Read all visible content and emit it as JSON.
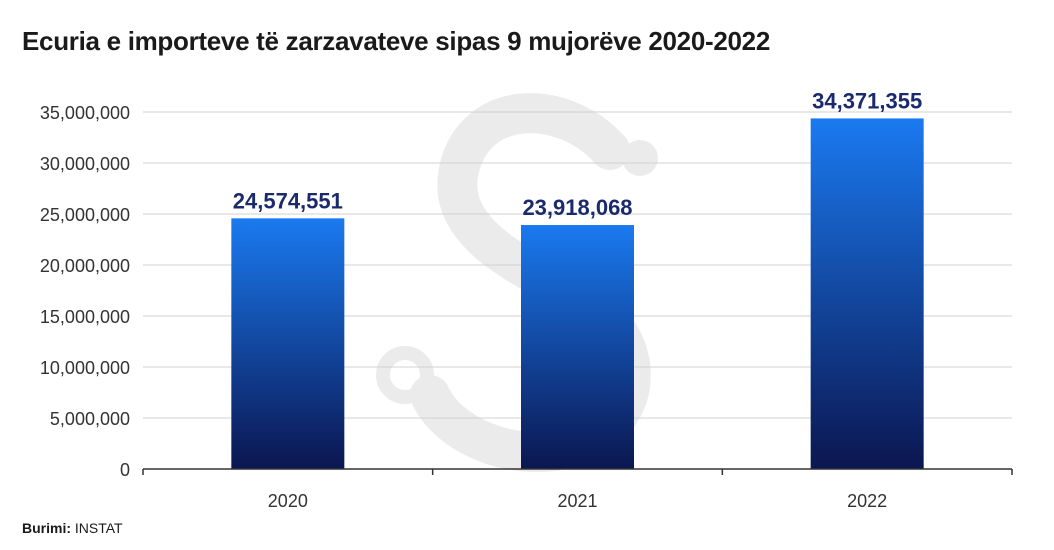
{
  "title": "Ecuria e importeve të zarzavateve sipas 9 mujorëve 2020-2022",
  "source": {
    "label": "Burimi:",
    "value": "INSTAT"
  },
  "colors": {
    "bar_top": "#1a7af0",
    "bar_bottom": "#0b1650",
    "label": "#1a2a6c",
    "grid": "#d0d0d0",
    "axis": "#333333",
    "watermark": "#ebebeb"
  },
  "chart_data": {
    "type": "bar",
    "title": "Ecuria e importeve të zarzavateve sipas 9 mujorëve 2020-2022",
    "categories": [
      "2020",
      "2021",
      "2022"
    ],
    "values": [
      24574551,
      23918068,
      34371355
    ],
    "data_labels": [
      "24,574,551",
      "23,918,068",
      "34,371,355"
    ],
    "yticks": [
      "0",
      "5,000,000",
      "10,000,000",
      "15,000,000",
      "20,000,000",
      "25,000,000",
      "30,000,000",
      "35,000,000"
    ],
    "ylim": [
      0,
      35000000
    ],
    "xlabel": "",
    "ylabel": "",
    "grid": true,
    "legend": "none"
  }
}
